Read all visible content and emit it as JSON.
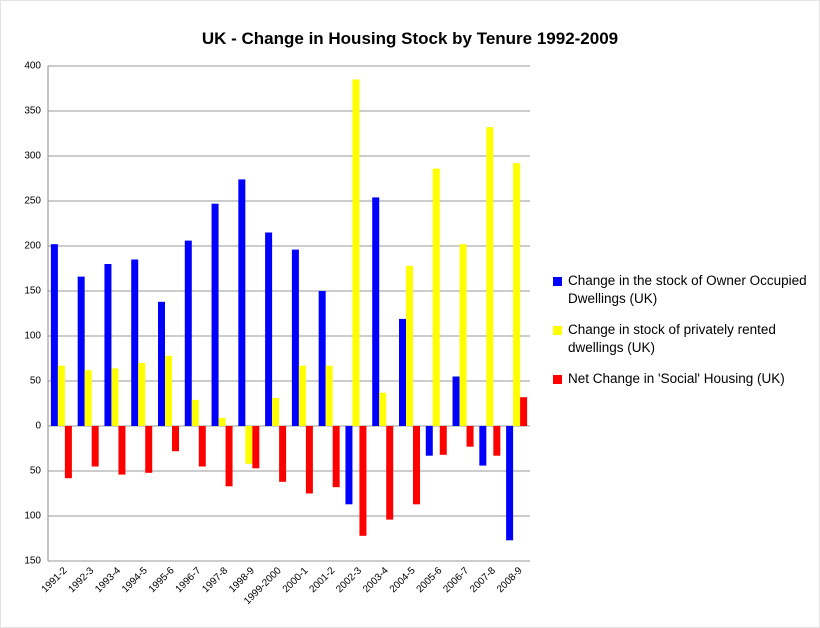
{
  "chart_data": {
    "type": "bar",
    "title": "UK - Change in Housing Stock by Tenure 1992-2009",
    "categories": [
      "1991-2",
      "1992-3",
      "1993-4",
      "1994-5",
      "1995-6",
      "1996-7",
      "1997-8",
      "1998-9",
      "1999-2000",
      "2000-1",
      "2001-2",
      "2002-3",
      "2003-4",
      "2004-5",
      "2005-6",
      "2006-7",
      "2007-8",
      "2008-9"
    ],
    "series": [
      {
        "name": "Change  in the stock of Owner Occupied Dwellings (UK)",
        "color": "#0000ff",
        "values": [
          202,
          166,
          180,
          185,
          138,
          206,
          247,
          274,
          215,
          196,
          150,
          -87,
          254,
          119,
          -33,
          55,
          -44,
          -127
        ]
      },
      {
        "name": "Change in stock of  privately rented dwellings (UK)",
        "color": "#ffff00",
        "values": [
          67,
          62,
          64,
          70,
          78,
          29,
          9,
          -42,
          31,
          67,
          67,
          385,
          37,
          178,
          286,
          202,
          332,
          292
        ]
      },
      {
        "name": "Net Change in 'Social' Housing (UK)",
        "color": "#ff0000",
        "values": [
          -58,
          -45,
          -54,
          -52,
          -28,
          -45,
          -67,
          -47,
          -62,
          -75,
          -68,
          -122,
          -104,
          -87,
          -32,
          -23,
          -33,
          32
        ]
      }
    ],
    "ylim": [
      -150,
      400
    ],
    "yticks": [
      {
        "value": -150,
        "label": "150"
      },
      {
        "value": -100,
        "label": "100"
      },
      {
        "value": -50,
        "label": "50"
      },
      0,
      50,
      100,
      150,
      200,
      250,
      300,
      350,
      400
    ],
    "grid": true,
    "legend": "right"
  }
}
